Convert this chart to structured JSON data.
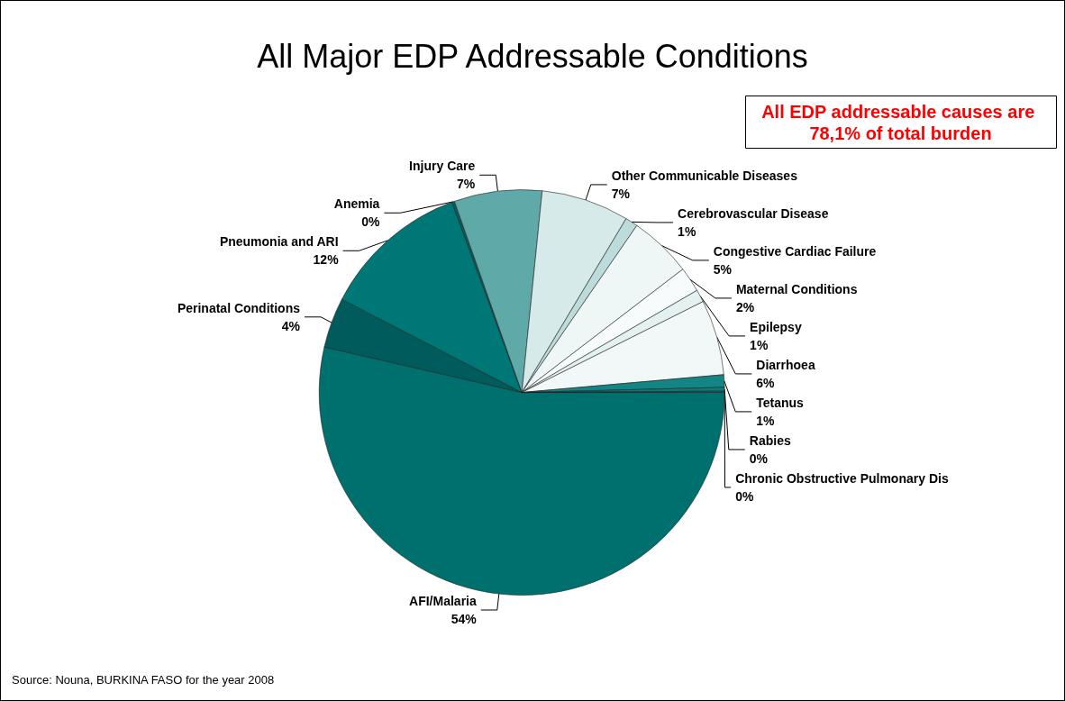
{
  "chart_data": {
    "type": "pie",
    "title": "All Major EDP Addressable Conditions",
    "categories": [
      "AFI/Malaria",
      "Perinatal Conditions",
      "Pneumonia and ARI",
      "Anemia",
      "Injury Care",
      "Other Communicable Diseases",
      "Cerebrovascular Disease",
      "Congestive Cardiac Failure",
      "Maternal Conditions",
      "Epilepsy",
      "Diarrhoea",
      "Tetanus",
      "Rabies",
      "Chronic Obstructive Pulmonary Dis"
    ],
    "values": [
      53.6,
      4,
      11.8,
      0.2,
      7,
      7,
      1,
      5,
      2,
      1,
      6,
      1,
      0.3,
      0.1
    ],
    "value_labels": [
      "54%",
      "4%",
      "12%",
      "0%",
      "7%",
      "7%",
      "1%",
      "5%",
      "2%",
      "1%",
      "6%",
      "1%",
      "0%",
      "0%"
    ],
    "colors": [
      "#00706f",
      "#005c5c",
      "#007777",
      "#0a5f5f",
      "#5fa9a9",
      "#d6eaea",
      "#bcdcdc",
      "#eef6f6",
      "#f7fbfb",
      "#e4f1f1",
      "#f2f8f8",
      "#138585",
      "#0a7a7a",
      "#005858"
    ],
    "annotations": [
      "All EDP addressable causes are 78,1% of total burden",
      "Source: Nouna, BURKINA FASO for the year 2008"
    ],
    "legend": false
  }
}
